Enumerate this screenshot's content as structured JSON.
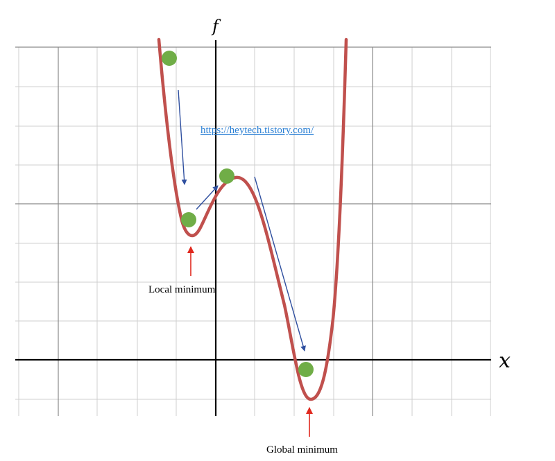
{
  "axes": {
    "y_label": "f",
    "x_label": "x"
  },
  "annotations": {
    "local_min": "Local minimum",
    "global_min": "Global minimum"
  },
  "watermark": {
    "url": "https://heytech.tistory.com/"
  },
  "colors": {
    "curve": "#c0504d",
    "point": "#70ad47",
    "descent_arrow": "#2f4f9f",
    "pointer_arrow": "#e0281e",
    "grid_minor": "#cfcfcf",
    "grid_major": "#8a8a8a",
    "axis": "#000000"
  }
}
